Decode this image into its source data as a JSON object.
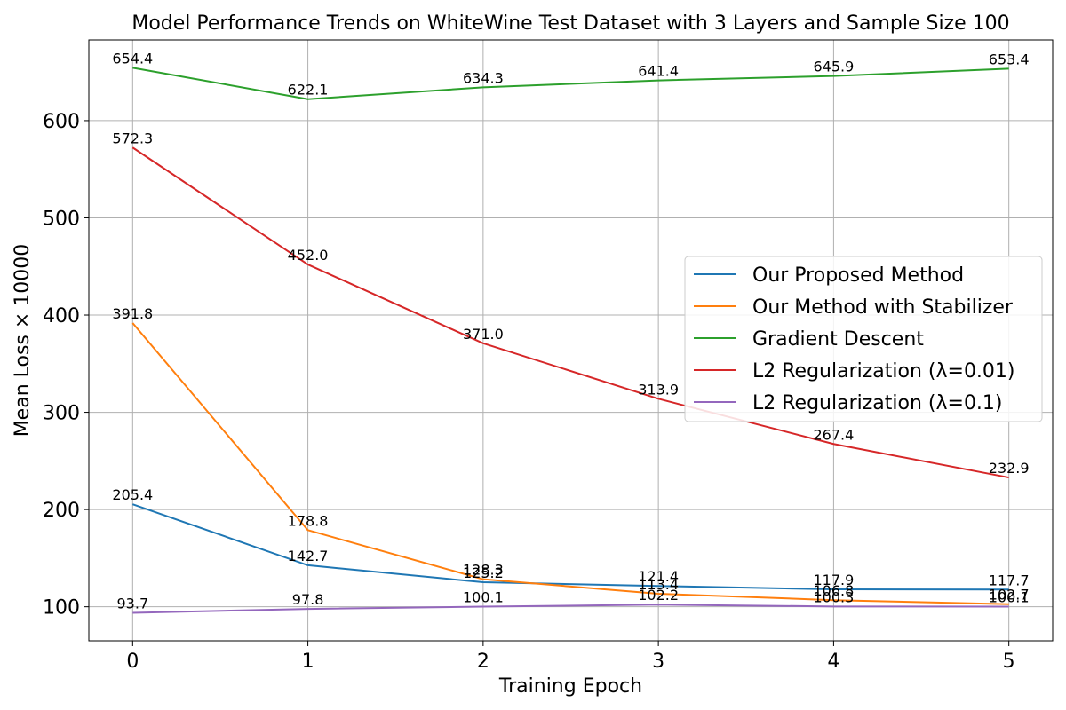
{
  "chart_data": {
    "type": "line",
    "title": "Model Performance Trends on WhiteWine Test Dataset with 3 Layers and Sample Size 100",
    "xlabel": "Training Epoch",
    "ylabel": "Mean Loss × 10000",
    "x": [
      0,
      1,
      2,
      3,
      4,
      5
    ],
    "xticks": [
      "0",
      "1",
      "2",
      "3",
      "4",
      "5"
    ],
    "yticks": [
      "100",
      "200",
      "300",
      "400",
      "500",
      "600"
    ],
    "xlim": [
      -0.25,
      5.25
    ],
    "ylim": [
      65,
      683
    ],
    "grid": true,
    "legend_position": "center-right",
    "series": [
      {
        "name": "Our Proposed Method",
        "color": "#1f77b4",
        "values": [
          205.4,
          142.7,
          125.2,
          121.4,
          117.9,
          117.7
        ],
        "labels": [
          "205.4",
          "142.7",
          "125.2",
          "121.4",
          "117.9",
          "117.7"
        ]
      },
      {
        "name": "Our Method with Stabilizer",
        "color": "#ff7f0e",
        "values": [
          391.8,
          178.8,
          128.3,
          113.4,
          106.8,
          102.7
        ],
        "labels": [
          "391.8",
          "178.8",
          "128.3",
          "113.4",
          "106.8",
          "102.7"
        ]
      },
      {
        "name": "Gradient Descent",
        "color": "#2ca02c",
        "values": [
          654.4,
          622.1,
          634.3,
          641.4,
          645.9,
          653.4
        ],
        "labels": [
          "654.4",
          "622.1",
          "634.3",
          "641.4",
          "645.9",
          "653.4"
        ]
      },
      {
        "name": "L2 Regularization (λ=0.01)",
        "color": "#d62728",
        "values": [
          572.3,
          452.0,
          371.0,
          313.9,
          267.4,
          232.9
        ],
        "labels": [
          "572.3",
          "452.0",
          "371.0",
          "313.9",
          "267.4",
          "232.9"
        ]
      },
      {
        "name": "L2 Regularization (λ=0.1)",
        "color": "#9467bd",
        "values": [
          93.7,
          97.8,
          100.1,
          102.2,
          100.3,
          100.1
        ],
        "labels": [
          "93.7",
          "97.8",
          "100.1",
          "102.2",
          "100.3",
          "100.1"
        ]
      }
    ]
  }
}
